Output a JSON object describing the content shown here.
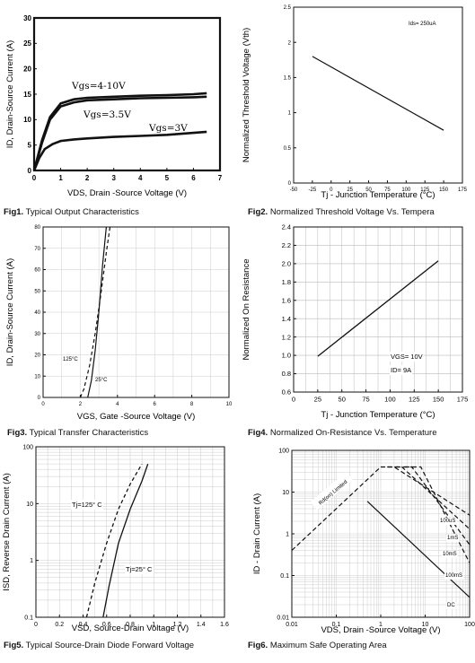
{
  "figures": [
    {
      "number": "Fig1.",
      "caption": "Typical Output Characteristics"
    },
    {
      "number": "Fig2.",
      "caption": "Normalized Threshold Voltage Vs. Tempera"
    },
    {
      "number": "Fig3.",
      "caption": "Typical Transfer Characteristics"
    },
    {
      "number": "Fig4.",
      "caption": "Normalized On-Resistance Vs. Temperature"
    },
    {
      "number": "Fig5.",
      "caption": "Typical Source-Drain Diode Forward Voltage"
    },
    {
      "number": "Fig6.",
      "caption": "Maximum Safe Operating Area"
    }
  ],
  "chart_data": [
    {
      "type": "line",
      "xlabel": "VDS, Drain -Source Voltage (V)",
      "ylabel": "ID, Drain-Source Current (A)",
      "xlim": [
        0,
        7
      ],
      "ylim": [
        0,
        30
      ],
      "xticks": [
        "0",
        "1",
        "2",
        "3",
        "4",
        "5",
        "6",
        "7"
      ],
      "yticks": [
        "0",
        "5",
        "10",
        "15",
        "20",
        "25",
        "30"
      ],
      "series": [
        {
          "name": "Vgs=4-10V",
          "x": [
            0,
            0.3,
            0.6,
            1,
            1.5,
            2,
            3,
            4,
            5,
            6,
            6.5
          ],
          "y": [
            0,
            6,
            10.5,
            13.2,
            14,
            14.3,
            14.5,
            14.7,
            14.8,
            15,
            15.2
          ]
        },
        {
          "name": "Vgs=3.5V",
          "x": [
            0,
            0.3,
            0.6,
            1,
            1.5,
            2,
            3,
            4,
            5,
            6,
            6.5
          ],
          "y": [
            0,
            5.5,
            10,
            12.6,
            13.4,
            13.8,
            14,
            14.2,
            14.3,
            14.4,
            14.5
          ]
        },
        {
          "name": "Vgs=3V",
          "x": [
            0,
            0.2,
            0.4,
            0.7,
            1,
            1.5,
            2,
            3,
            4,
            5,
            6,
            6.5
          ],
          "y": [
            0,
            2.5,
            4.2,
            5.2,
            5.8,
            6.1,
            6.3,
            6.6,
            6.8,
            7,
            7.4,
            7.6
          ]
        }
      ],
      "annotations": [
        "Vgs=4-10V",
        "Vgs=3.5V",
        "Vgs=3V"
      ]
    },
    {
      "type": "line",
      "xlabel": "Tj - Junction Temperature (°C)",
      "ylabel": "Normalized Threshold Voltage (Vth)",
      "xlim": [
        -50,
        175
      ],
      "ylim": [
        0,
        2.5
      ],
      "xticks": [
        "-50",
        "-25",
        "0",
        "25",
        "50",
        "75",
        "100",
        "125",
        "150",
        "175"
      ],
      "yticks": [
        "0",
        "0.5",
        "1",
        "1.5",
        "2",
        "2.5"
      ],
      "series": [
        {
          "x": [
            -25,
            150
          ],
          "y": [
            1.8,
            0.75
          ]
        }
      ],
      "annotations": [
        "Ids= 250uA"
      ]
    },
    {
      "type": "line",
      "xlabel": "VGS, Gate -Source Voltage (V)",
      "ylabel": "ID, Drain-Source Current (A)",
      "xlim": [
        0,
        10
      ],
      "ylim": [
        0,
        80
      ],
      "xticks": [
        "0",
        "2",
        "4",
        "6",
        "8",
        "10"
      ],
      "yticks": [
        "0",
        "10",
        "20",
        "30",
        "40",
        "50",
        "60",
        "70",
        "80"
      ],
      "series": [
        {
          "name": "125°C",
          "x": [
            2,
            2.2,
            2.5,
            2.8,
            3.1,
            3.4,
            3.6
          ],
          "y": [
            0,
            4,
            15,
            30,
            48,
            68,
            80
          ]
        },
        {
          "name": "25°C",
          "x": [
            2.4,
            2.6,
            2.8,
            3,
            3.2,
            3.4
          ],
          "y": [
            0,
            8,
            22,
            40,
            62,
            80
          ]
        }
      ],
      "annotations": [
        "125°C",
        "25°C"
      ]
    },
    {
      "type": "line",
      "xlabel": "Tj - Junction Temperature (°C)",
      "ylabel": "Normalized On Resistance",
      "xlim": [
        0,
        175
      ],
      "ylim": [
        0.6,
        2.4
      ],
      "xticks": [
        "0",
        "25",
        "50",
        "75",
        "100",
        "125",
        "150",
        "175"
      ],
      "yticks": [
        "0.6",
        "0.8",
        "1.0",
        "1.2",
        "1.4",
        "1.6",
        "1.8",
        "2.0",
        "2.2",
        "2.4"
      ],
      "series": [
        {
          "x": [
            25,
            150
          ],
          "y": [
            0.99,
            2.03
          ]
        }
      ],
      "annotations": [
        "VGS= 10V",
        "ID= 9A"
      ]
    },
    {
      "type": "line",
      "xlabel": "VSD, Source-Drain Voltage (V)",
      "ylabel": "ISD, Reverse Drain Current (A)",
      "xlim": [
        0,
        1.6
      ],
      "ylim": [
        0.1,
        100
      ],
      "yscale": "log",
      "xticks": [
        "0",
        "0.2",
        "0.4",
        "0.6",
        "0.8",
        "1",
        "1.2",
        "1.4",
        "1.6"
      ],
      "yticks": [
        "0.1",
        "1",
        "10",
        "100"
      ],
      "series": [
        {
          "name": "Tj=125°C",
          "x": [
            0.43,
            0.5,
            0.6,
            0.7,
            0.8,
            0.9
          ],
          "y": [
            0.1,
            0.4,
            2,
            8,
            22,
            50
          ]
        },
        {
          "name": "Tj=25°C",
          "x": [
            0.57,
            0.62,
            0.7,
            0.8,
            0.9,
            0.95
          ],
          "y": [
            0.1,
            0.35,
            2,
            8,
            25,
            50
          ]
        }
      ],
      "annotations": [
        "Tj=125° C",
        "Tj=25° C"
      ]
    },
    {
      "type": "line",
      "xlabel": "VDS, Drain -Source Voltage (V)",
      "ylabel": "ID - Drain Current (A)",
      "xlim": [
        0.01,
        100
      ],
      "ylim": [
        0.01,
        100
      ],
      "xscale": "log",
      "yscale": "log",
      "xticks": [
        "0.01",
        "0.1",
        "1",
        "10",
        "100"
      ],
      "yticks": [
        "0.01",
        "0.1",
        "1",
        "10",
        "100"
      ],
      "series": [
        {
          "name": "Rd(on) Limited",
          "x": [
            0.01,
            1
          ],
          "y": [
            0.4,
            40
          ]
        },
        {
          "name": "100uS",
          "x": [
            1,
            2,
            100
          ],
          "y": [
            40,
            40,
            2.8
          ]
        },
        {
          "name": "1mS",
          "x": [
            1.4,
            3,
            100
          ],
          "y": [
            40,
            40,
            1.3
          ]
        },
        {
          "name": "10mS",
          "x": [
            2.2,
            5,
            100
          ],
          "y": [
            40,
            40,
            0.55
          ]
        },
        {
          "name": "100mS",
          "x": [
            3.5,
            8,
            100
          ],
          "y": [
            40,
            40,
            0.2
          ]
        },
        {
          "name": "DC",
          "x": [
            0.5,
            100
          ],
          "y": [
            6,
            0.03
          ]
        }
      ],
      "annotations": [
        "Rd(on) Limited",
        "100uS",
        "1mS",
        "10mS",
        "100mS",
        "DC"
      ]
    }
  ]
}
